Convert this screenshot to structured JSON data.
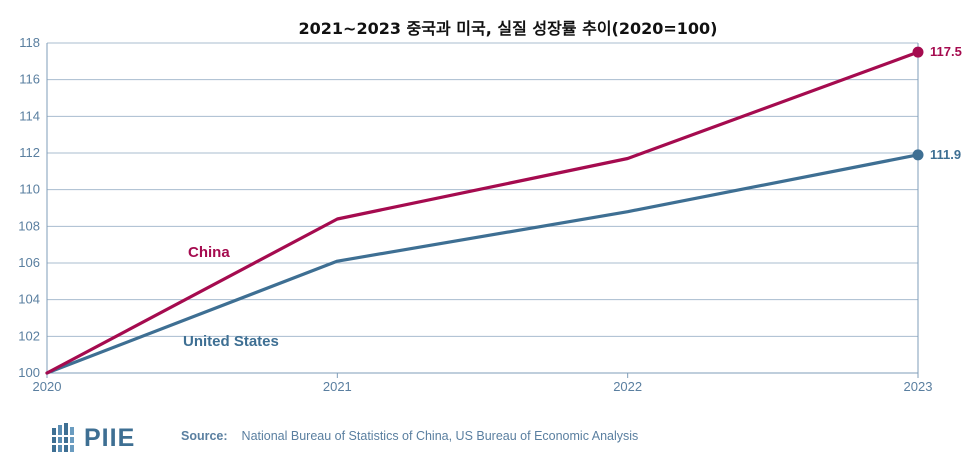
{
  "chart_data": {
    "type": "line",
    "title": "2021~2023 중국과 미국, 실질 성장률 추이(2020=100)",
    "xlabel": "",
    "ylabel": "",
    "x": [
      "2020",
      "2021",
      "2022",
      "2023"
    ],
    "ylim": [
      100,
      118
    ],
    "yticks": [
      100,
      102,
      104,
      106,
      108,
      110,
      112,
      114,
      116,
      118
    ],
    "grid": true,
    "legend": "inline labels",
    "series": [
      {
        "name": "China",
        "values": [
          100,
          108.4,
          111.7,
          117.5
        ],
        "color": "#a50b4f",
        "end_label": "117.5"
      },
      {
        "name": "United States",
        "values": [
          100,
          106.1,
          108.8,
          111.9
        ],
        "color": "#3e6f93",
        "end_label": "111.9"
      }
    ],
    "colors": {
      "grid": "#a8bccf",
      "axis": "#7f9db8",
      "tick_text": "#5a7fa0"
    }
  },
  "footer": {
    "logo_text": "PIIE",
    "source_label": "Source:",
    "source_text": "National Bureau of Statistics of China, US Bureau of Economic Analysis"
  }
}
